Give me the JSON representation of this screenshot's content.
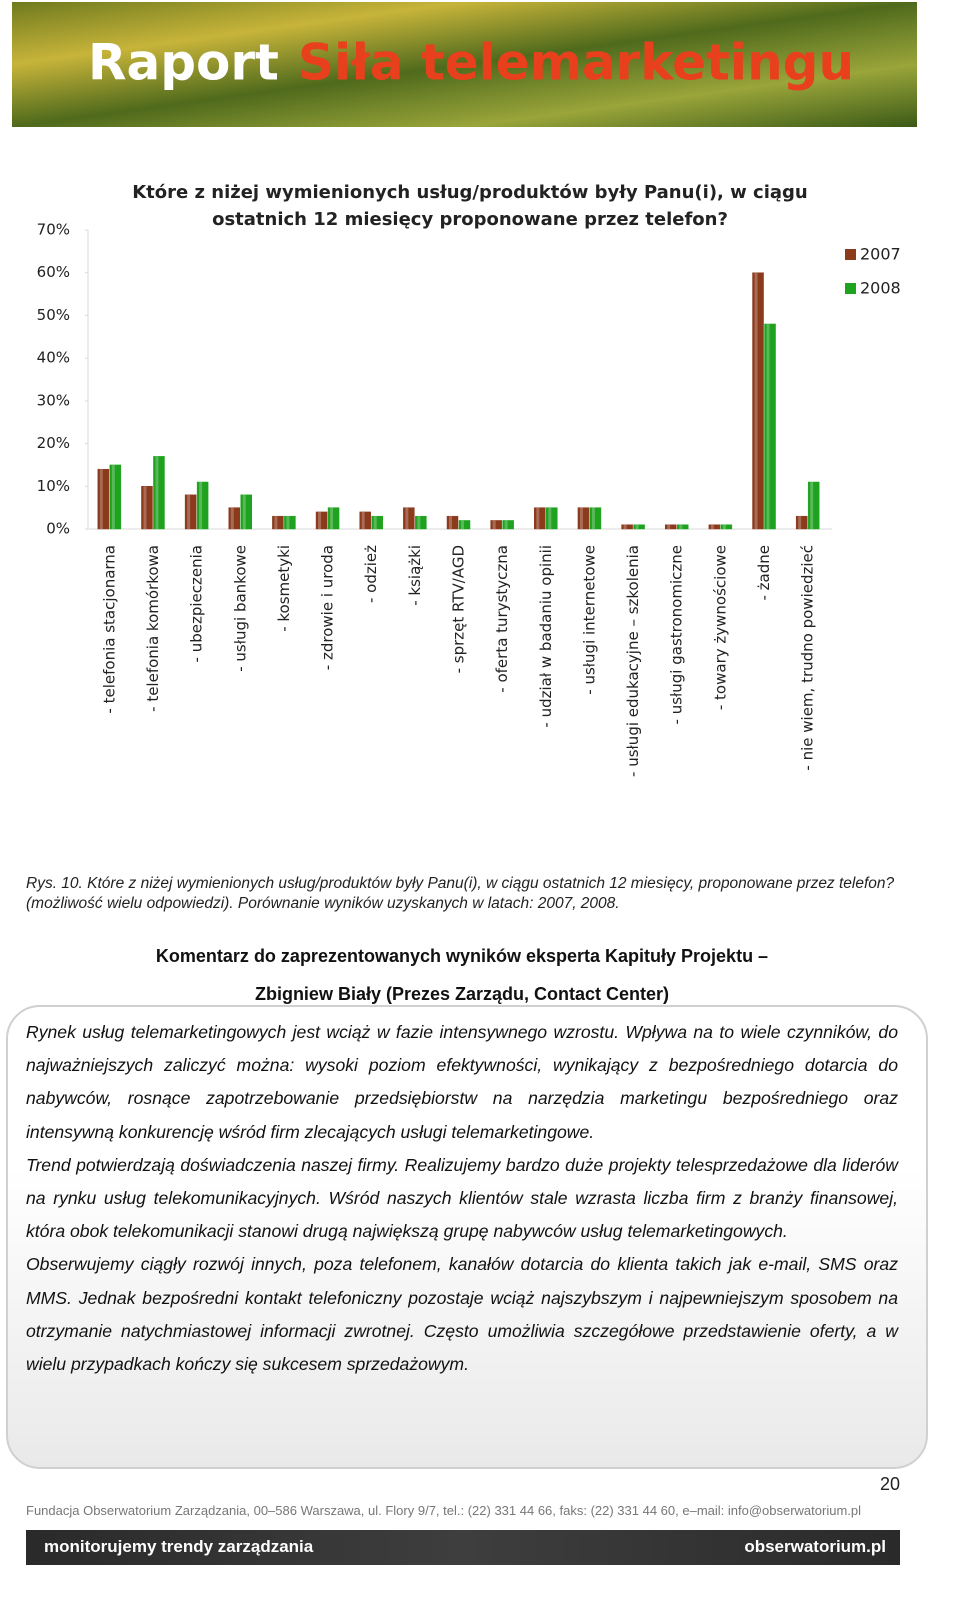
{
  "header": {
    "title_1": "Raport",
    "title_2": "Siła telemarketingu"
  },
  "chart_data": {
    "type": "bar",
    "title": "Które z niżej wymienionych usług/produktów były Panu(i),  w ciągu ostatnich 12 miesięcy proponowane przez telefon?",
    "categories": [
      "- telefonia stacjonarna",
      "- telefonia komórkowa",
      "- ubezpieczenia",
      "- usługi bankowe",
      "- kosmetyki",
      "- zdrowie i uroda",
      "- odzież",
      "- książki",
      "- sprzęt RTV/AGD",
      "- oferta turystyczna",
      "- udział w badaniu opinii",
      "- usługi internetowe",
      "- usługi edukacyjne – szkolenia",
      "- usługi gastronomiczne",
      "- towary żywnościowe",
      "- żadne",
      "- nie wiem, trudno powiedzieć"
    ],
    "series": [
      {
        "name": "2007",
        "color": "#8b3a1c",
        "values": [
          14,
          10,
          8,
          5,
          3,
          4,
          4,
          5,
          3,
          2,
          5,
          5,
          1,
          1,
          1,
          60,
          3
        ]
      },
      {
        "name": "2008",
        "color": "#1fa21f",
        "values": [
          15,
          17,
          11,
          8,
          3,
          5,
          3,
          3,
          2,
          2,
          5,
          5,
          1,
          1,
          1,
          48,
          11
        ]
      }
    ],
    "ylim": [
      0,
      70
    ],
    "yticks": [
      {
        "value": 0,
        "label": "0%"
      },
      {
        "value": 10,
        "label": "10%"
      },
      {
        "value": 20,
        "label": "20%"
      },
      {
        "value": 30,
        "label": "30%"
      },
      {
        "value": 40,
        "label": "40%"
      },
      {
        "value": 50,
        "label": "50%"
      },
      {
        "value": 60,
        "label": "60%"
      },
      {
        "value": 70,
        "label": "70%"
      }
    ],
    "grid": false,
    "legend": "right"
  },
  "caption": "Rys. 10. Które z niżej wymienionych usług/produktów były Panu(i), w ciągu ostatnich 12 miesięcy, proponowane przez telefon?(możliwość wielu odpowiedzi). Porównanie wyników uzyskanych w latach: 2007, 2008.",
  "commentary": {
    "heading_1": "Komentarz do zaprezentowanych wyników eksperta Kapituły Projektu –",
    "heading_2": "Zbigniew Biały (Prezes Zarządu, Contact Center)",
    "paragraphs": [
      "Rynek usług telemarketingowych jest wciąż w fazie intensywnego wzrostu. Wpływa na to wiele czynników, do najważniejszych zaliczyć można: wysoki poziom efektywności, wynikający z bezpośredniego dotarcia do nabywców, rosnące zapotrzebowanie przedsiębiorstw na narzędzia marketingu bezpośredniego oraz intensywną konkurencję wśród firm zlecających usługi telemarketingowe.",
      "Trend potwierdzają doświadczenia naszej firmy. Realizujemy bardzo duże projekty telesprzedażowe dla liderów na rynku usług telekomunikacyjnych. Wśród naszych klientów stale wzrasta liczba firm z branży finansowej, która obok telekomunikacji stanowi drugą największą grupę nabywców usług telemarketingowych.",
      "Obserwujemy ciągły rozwój innych, poza telefonem, kanałów dotarcia do klienta takich jak e-mail, SMS oraz MMS. Jednak bezpośredni kontakt telefoniczny pozostaje wciąż najszybszym i najpewniejszym sposobem na otrzymanie natychmiastowej informacji zwrotnej. Często umożliwia szczegółowe przedstawienie oferty, a w wielu przypadkach kończy się sukcesem sprzedażowym."
    ]
  },
  "page_number": 20,
  "footer": {
    "address": "Fundacja Obserwatorium Zarządzania, 00–586 Warszawa, ul. Flory 9/7, tel.: (22) 331 44 66, faks: (22) 331 44 60, e–mail: info@obserwatorium.pl",
    "slogan": "monitorujemy trendy zarządzania",
    "website": "obserwatorium.pl"
  }
}
